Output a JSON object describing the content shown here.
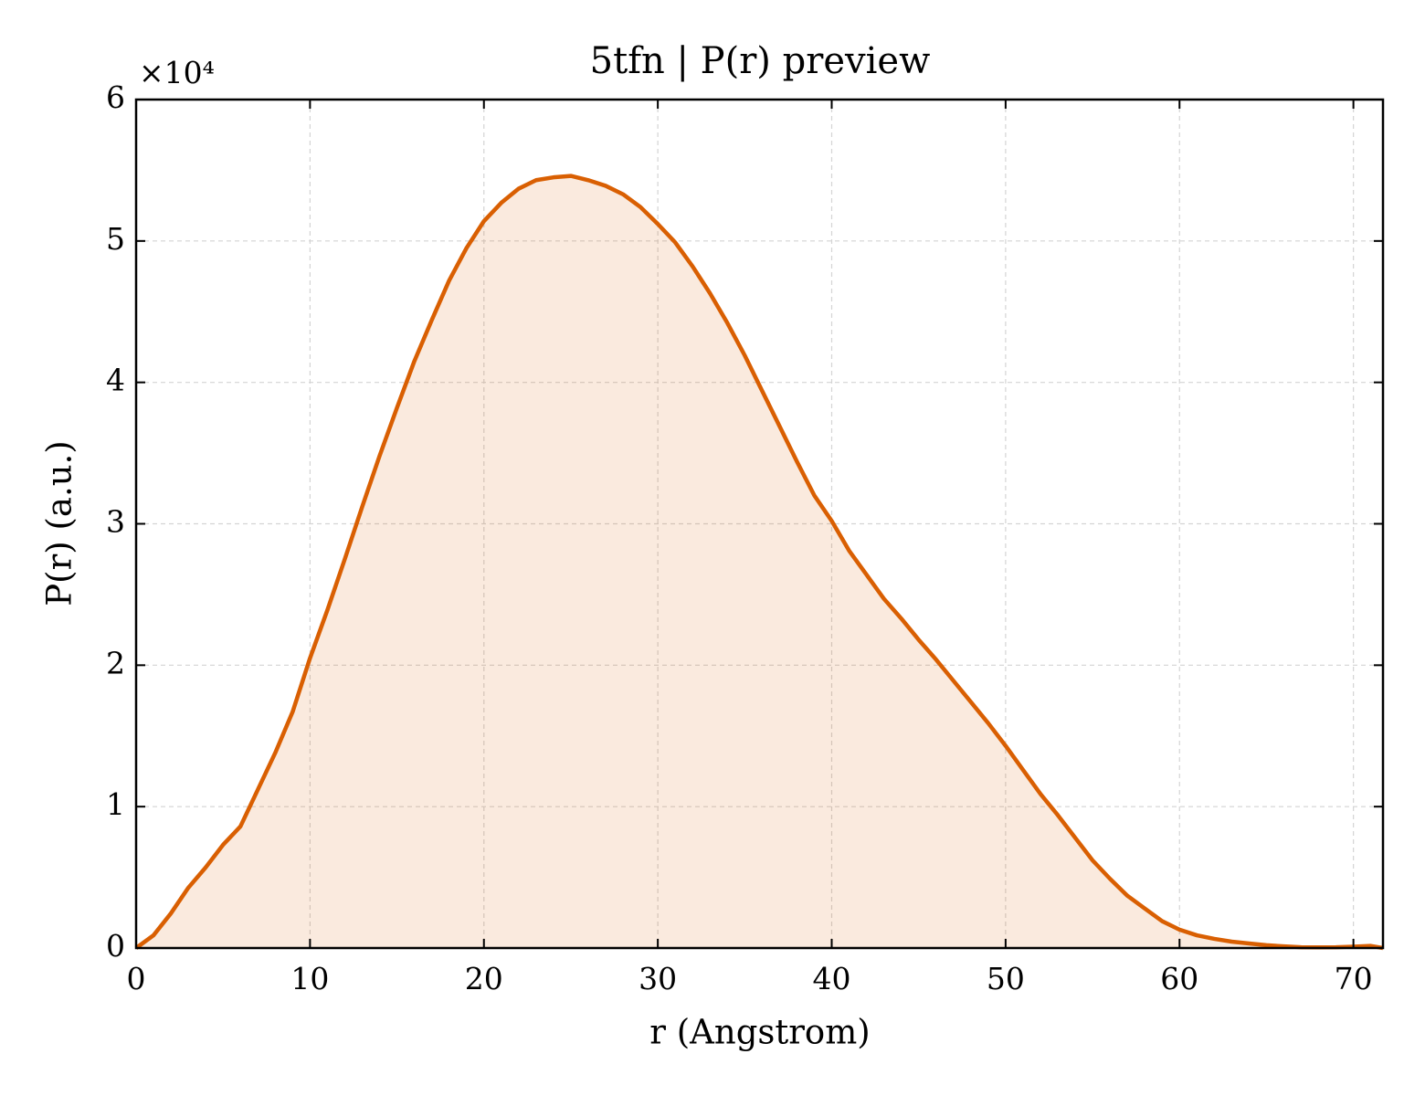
{
  "chart_data": {
    "type": "line",
    "title": "5tfn | P(r) preview",
    "x_label": "r (Angstrom)",
    "y_label": "P(r) (a.u.)",
    "y_offset_label": "×10⁴",
    "x": [
      0,
      1,
      2,
      3,
      4,
      5,
      6,
      7,
      8,
      9,
      10,
      11,
      12,
      13,
      14,
      15,
      16,
      17,
      18,
      19,
      20,
      21,
      22,
      23,
      24,
      25,
      26,
      27,
      28,
      29,
      30,
      31,
      32,
      33,
      34,
      35,
      36,
      37,
      38,
      39,
      40,
      41,
      42,
      43,
      44,
      45,
      46,
      47,
      48,
      49,
      50,
      51,
      52,
      53,
      54,
      55,
      56,
      57,
      58,
      59,
      60,
      61,
      62,
      63,
      64,
      65,
      66,
      67,
      68,
      69,
      70,
      71,
      71.7
    ],
    "series": [
      {
        "name": "P(r)",
        "color": "#d95f02",
        "values": [
          0,
          900,
          2450,
          4260,
          5700,
          7300,
          8600,
          11200,
          13800,
          16700,
          20500,
          23900,
          27500,
          31200,
          34800,
          38200,
          41500,
          44400,
          47200,
          49500,
          51400,
          52700,
          53700,
          54300,
          54500,
          54600,
          54300,
          53900,
          53300,
          52400,
          51200,
          49900,
          48200,
          46300,
          44200,
          41900,
          39400,
          36900,
          34400,
          32000,
          30200,
          28100,
          26400,
          24700,
          23300,
          21800,
          20400,
          18900,
          17400,
          15900,
          14300,
          12600,
          10900,
          9400,
          7800,
          6200,
          4900,
          3700,
          2800,
          1900,
          1300,
          900,
          650,
          450,
          320,
          200,
          120,
          60,
          50,
          60,
          100,
          150,
          0
        ]
      }
    ],
    "xlim": [
      0,
      71.7
    ],
    "xticks": [
      0,
      10,
      20,
      30,
      40,
      50,
      60,
      70
    ],
    "ylim": [
      0,
      60000
    ],
    "yticks": [
      {
        "value": 0,
        "label": "0"
      },
      {
        "value": 10000,
        "label": "1"
      },
      {
        "value": 20000,
        "label": "2"
      },
      {
        "value": 30000,
        "label": "3"
      },
      {
        "value": 40000,
        "label": "4"
      },
      {
        "value": 50000,
        "label": "5"
      },
      {
        "value": 60000,
        "label": "6"
      }
    ],
    "grid": true
  }
}
